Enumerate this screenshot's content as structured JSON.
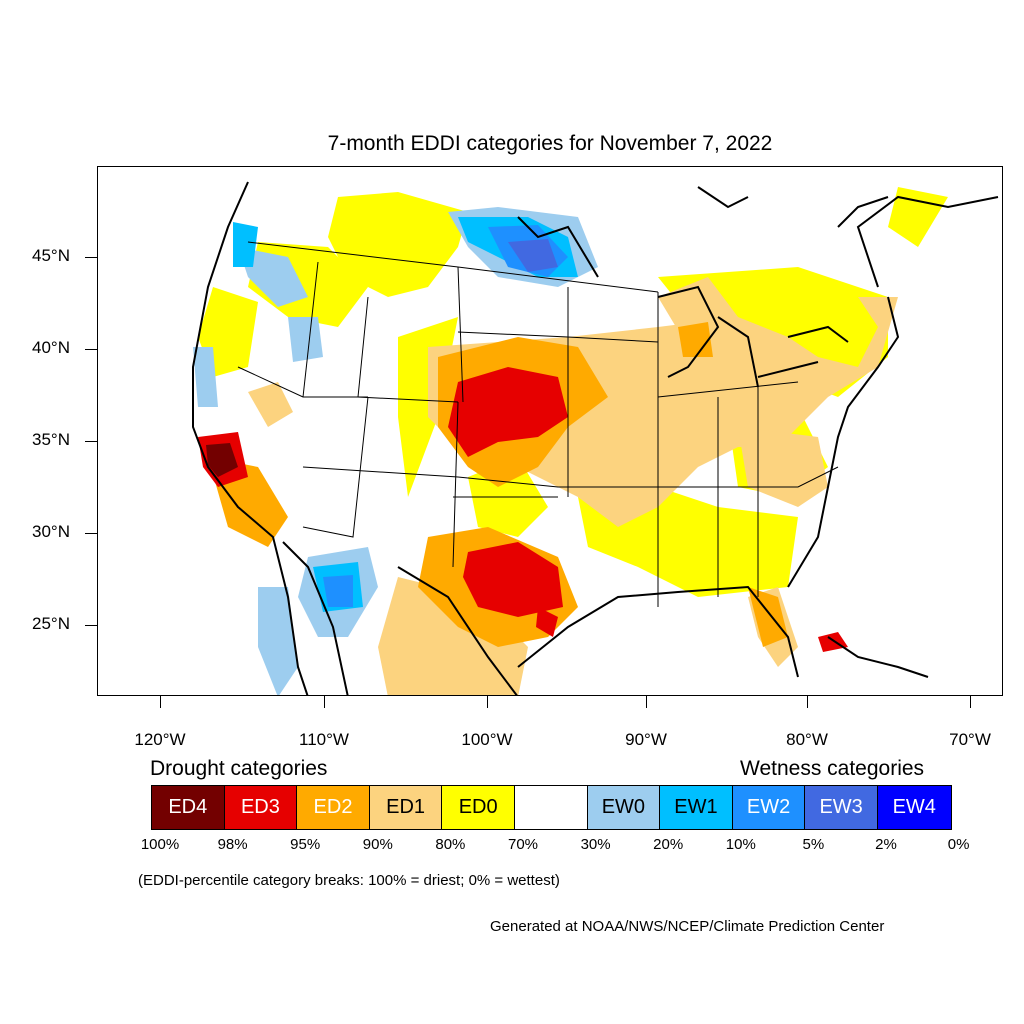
{
  "title": "7-month EDDI categories for November 7, 2022",
  "lat_labels": [
    "45°N",
    "40°N",
    "35°N",
    "30°N",
    "25°N"
  ],
  "lon_labels": [
    "120°W",
    "110°W",
    "100°W",
    "90°W",
    "80°W",
    "70°W"
  ],
  "legend": {
    "drought_heading": "Drought categories",
    "wetness_heading": "Wetness categories",
    "categories": [
      {
        "label": "ED4",
        "color": "#730000",
        "text_color": "#ffffff"
      },
      {
        "label": "ED3",
        "color": "#e60000",
        "text_color": "#ffffff"
      },
      {
        "label": "ED2",
        "color": "#ffaa00",
        "text_color": "#ffffff"
      },
      {
        "label": "ED1",
        "color": "#fcd37f",
        "text_color": "#000000"
      },
      {
        "label": "ED0",
        "color": "#ffff00",
        "text_color": "#000000"
      },
      {
        "label": "",
        "color": "#ffffff",
        "text_color": "#000000"
      },
      {
        "label": "EW0",
        "color": "#9dcdef",
        "text_color": "#000000"
      },
      {
        "label": "EW1",
        "color": "#00bfff",
        "text_color": "#000000"
      },
      {
        "label": "EW2",
        "color": "#1e90ff",
        "text_color": "#ffffff"
      },
      {
        "label": "EW3",
        "color": "#4169e1",
        "text_color": "#ffffff"
      },
      {
        "label": "EW4",
        "color": "#0000ff",
        "text_color": "#ffffff"
      }
    ],
    "percentiles": [
      "100%",
      "98%",
      "95%",
      "90%",
      "80%",
      "70%",
      "30%",
      "20%",
      "10%",
      "5%",
      "2%",
      "0%"
    ]
  },
  "note": "(EDDI-percentile category breaks: 100% = driest; 0% = wettest)",
  "credit": "Generated at NOAA/NWS/NCEP/Climate Prediction Center"
}
